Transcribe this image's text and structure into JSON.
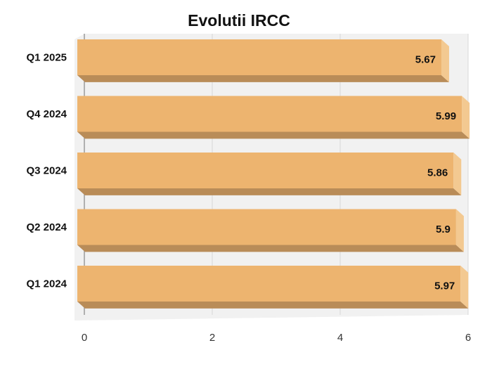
{
  "chart_data": {
    "type": "bar",
    "orientation": "horizontal",
    "title": "Evolutii IRCC",
    "categories": [
      "Q1 2025",
      "Q4 2024",
      "Q3 2024",
      "Q2 2024",
      "Q1 2024"
    ],
    "values": [
      5.67,
      5.99,
      5.86,
      5.9,
      5.97
    ],
    "value_labels": [
      "5.67",
      "5.99",
      "5.86",
      "5.9",
      "5.97"
    ],
    "xlim": [
      0,
      6
    ],
    "x_ticks": [
      "0",
      "2",
      "4",
      "6"
    ],
    "xlabel": "",
    "ylabel": "",
    "grid": "vertical",
    "style": "3d",
    "colors": {
      "bar": "#EDB46F",
      "bar_side": "#F3C991",
      "bar_bottom": "#B98C58",
      "wall": "#F1F1F1"
    }
  }
}
